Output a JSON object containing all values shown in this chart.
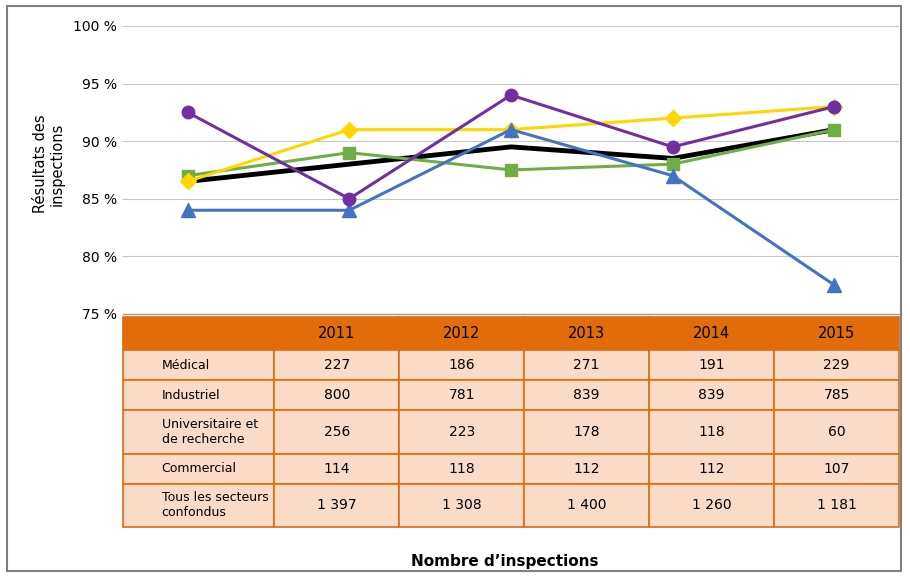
{
  "years": [
    2011,
    2012,
    2013,
    2014,
    2015
  ],
  "medical": [
    86.5,
    91.0,
    91.0,
    92.0,
    93.0
  ],
  "industriel": [
    87.0,
    89.0,
    87.5,
    88.0,
    91.0
  ],
  "universitaire": [
    84.0,
    84.0,
    91.0,
    87.0,
    77.5
  ],
  "commercial": [
    92.5,
    85.0,
    94.0,
    89.5,
    93.0
  ],
  "tous": [
    86.5,
    88.0,
    89.5,
    88.5,
    91.0
  ],
  "color_medical": "#FFD700",
  "color_industriel": "#70AD47",
  "color_universitaire": "#4472C4",
  "color_commercial": "#7030A0",
  "color_tous": "#000000",
  "ylabel": "Résultats des\ninspections",
  "xlabel": "Nombre d’inspections",
  "ylim_min": 75,
  "ylim_max": 101,
  "yticks": [
    75,
    80,
    85,
    90,
    95,
    100
  ],
  "ytick_labels": [
    "75 %",
    "80 %",
    "85 %",
    "90 %",
    "95 %",
    "100 %"
  ],
  "table_years": [
    "2011",
    "2012",
    "2013",
    "2014",
    "2015"
  ],
  "table_header_bg": "#E26B0A",
  "table_row_bg": "#FADBC8",
  "table_border_color": "#E26B0A",
  "medical_counts": [
    "227",
    "186",
    "271",
    "191",
    "229"
  ],
  "industriel_counts": [
    "800",
    "781",
    "839",
    "839",
    "785"
  ],
  "universitaire_counts": [
    "256",
    "223",
    "178",
    "118",
    "60"
  ],
  "commercial_counts": [
    "114",
    "118",
    "112",
    "112",
    "107"
  ],
  "tous_counts": [
    "1 397",
    "1 308",
    "1 400",
    "1 260",
    "1 181"
  ],
  "outer_border_color": "#808080",
  "fig_bg": "#FFFFFF",
  "label_medical": "Médical",
  "label_industriel": "Industriel",
  "label_universitaire_1": "Universitaire et",
  "label_universitaire_2": "de recherche",
  "label_commercial": "Commercial",
  "label_tous_1": "Tous les secteurs",
  "label_tous_2": "confondus"
}
